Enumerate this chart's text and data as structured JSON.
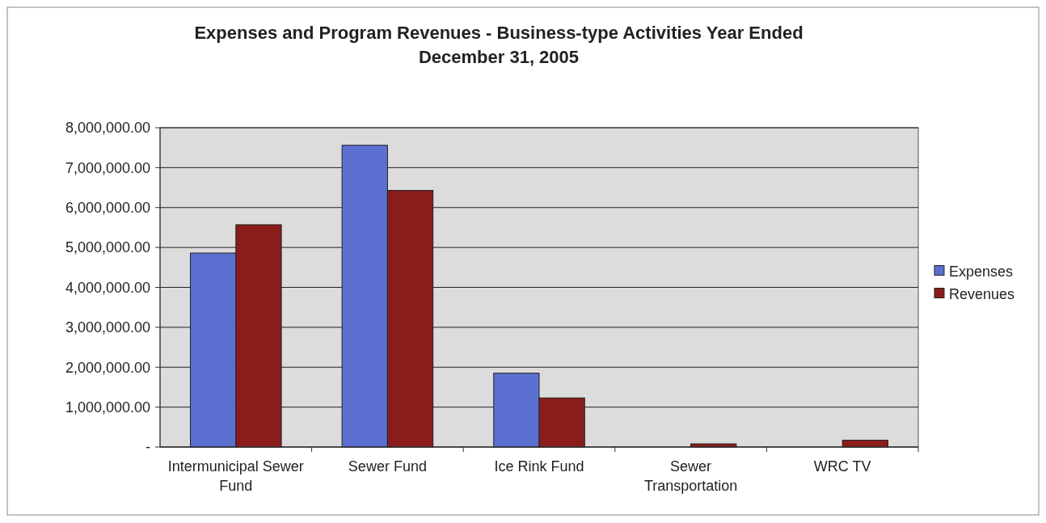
{
  "chart_data": {
    "type": "bar",
    "title": "Expenses and Program Revenues - Business-type Activities Year Ended December 31, 2005",
    "categories": [
      "Intermunicipal Sewer Fund",
      "Sewer Fund",
      "Ice Rink Fund",
      "Sewer Transportation",
      "WRC TV"
    ],
    "series": [
      {
        "name": "Expenses",
        "color": "#5b6fd0",
        "values": [
          4860000,
          7560000,
          1850000,
          0,
          0
        ]
      },
      {
        "name": "Revenues",
        "color": "#8b1c1c",
        "values": [
          5570000,
          6430000,
          1230000,
          80000,
          170000
        ]
      }
    ],
    "ylim": [
      0,
      8000000
    ],
    "yticks": [
      {
        "value": 0,
        "label": "-"
      },
      {
        "value": 1000000,
        "label": "1,000,000.00"
      },
      {
        "value": 2000000,
        "label": "2,000,000.00"
      },
      {
        "value": 3000000,
        "label": "3,000,000.00"
      },
      {
        "value": 4000000,
        "label": "4,000,000.00"
      },
      {
        "value": 5000000,
        "label": "5,000,000.00"
      },
      {
        "value": 6000000,
        "label": "6,000,000.00"
      },
      {
        "value": 7000000,
        "label": "7,000,000.00"
      },
      {
        "value": 8000000,
        "label": "8,000,000.00"
      }
    ],
    "grid": "y",
    "legend": "right"
  }
}
